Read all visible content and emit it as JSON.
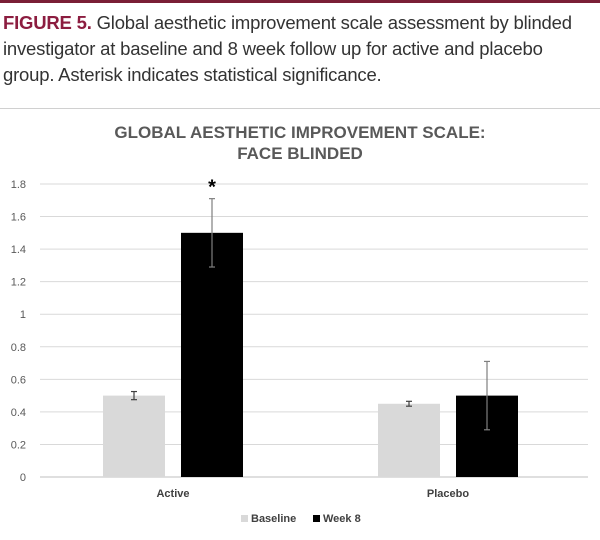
{
  "caption": {
    "label": "FIGURE 5.",
    "text": " Global aesthetic improvement scale assessment by blinded investigator at baseline and 8 week follow up for active and placebo group. Asterisk indicates statistical significance."
  },
  "chart_data": {
    "type": "bar",
    "title_lines": [
      "GLOBAL AESTHETIC IMPROVEMENT SCALE:",
      "FACE BLINDED"
    ],
    "categories": [
      "Active",
      "Placebo"
    ],
    "series": [
      {
        "name": "Baseline",
        "color": "#d9d9d9",
        "values": [
          0.5,
          0.45
        ],
        "errors": [
          0.025,
          0.015
        ]
      },
      {
        "name": "Week 8",
        "color": "#000000",
        "values": [
          1.5,
          0.5
        ],
        "errors": [
          0.21,
          0.21
        ]
      }
    ],
    "ylim": [
      0,
      1.8
    ],
    "yticks": [
      "0",
      "0.2",
      "0.4",
      "0.6",
      "0.8",
      "1",
      "1.2",
      "1.4",
      "1.6",
      "1.8"
    ],
    "ytick_values": [
      0,
      0.2,
      0.4,
      0.6,
      0.8,
      1,
      1.2,
      1.4,
      1.6,
      1.8
    ],
    "annotations": [
      {
        "text": "*",
        "series": "Week 8",
        "category": "Active"
      }
    ],
    "grid": true,
    "legend_position": "bottom"
  }
}
